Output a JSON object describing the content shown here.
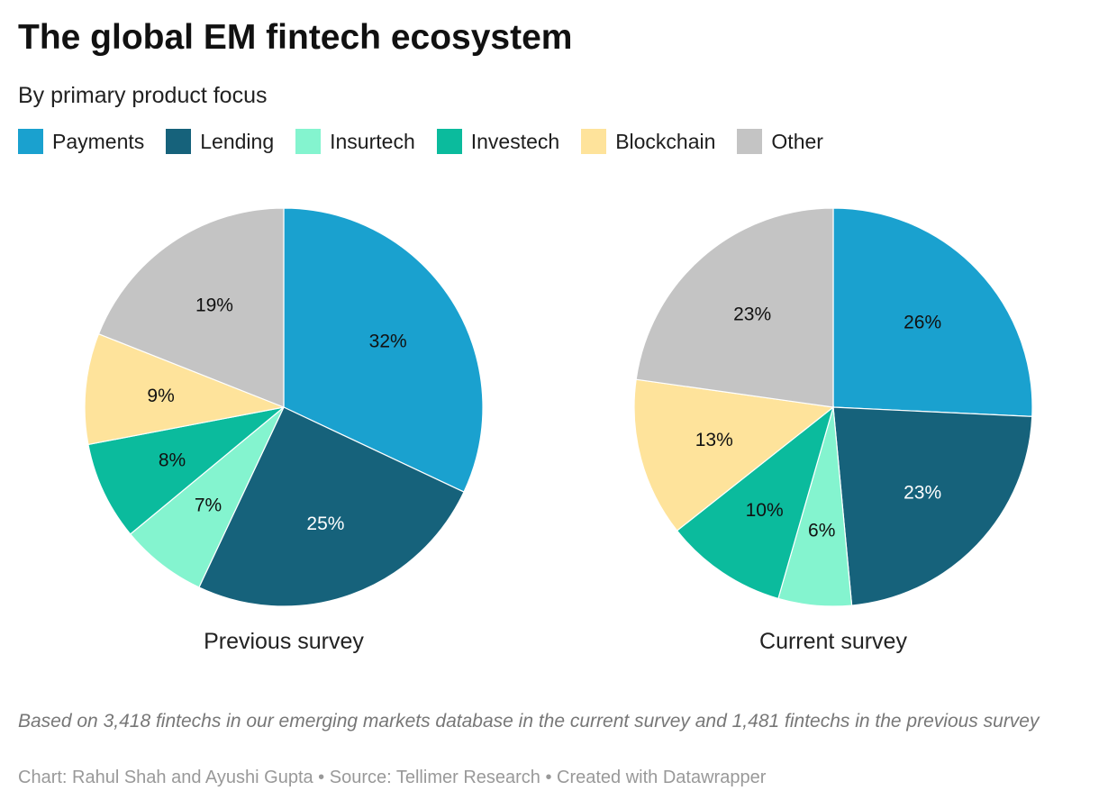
{
  "title": "The global EM fintech ecosystem",
  "subtitle": "By primary product focus",
  "chart_data": [
    {
      "type": "pie",
      "title": "Previous survey",
      "categories": [
        "Payments",
        "Lending",
        "Insurtech",
        "Investech",
        "Blockchain",
        "Other"
      ],
      "values": [
        32,
        25,
        7,
        8,
        9,
        19
      ],
      "labels": [
        "32%",
        "25%",
        "7%",
        "8%",
        "9%",
        "19%"
      ]
    },
    {
      "type": "pie",
      "title": "Current survey",
      "categories": [
        "Payments",
        "Lending",
        "Insurtech",
        "Investech",
        "Blockchain",
        "Other"
      ],
      "values": [
        26,
        23,
        6,
        10,
        13,
        23
      ],
      "labels": [
        "26%",
        "23%",
        "6%",
        "10%",
        "13%",
        "23%"
      ]
    }
  ],
  "legend": [
    {
      "label": "Payments",
      "color": "#1aa1cf"
    },
    {
      "label": "Lending",
      "color": "#16627b"
    },
    {
      "label": "Insurtech",
      "color": "#84f4cf"
    },
    {
      "label": "Investech",
      "color": "#0bbb9d"
    },
    {
      "label": "Blockchain",
      "color": "#fee39b"
    },
    {
      "label": "Other",
      "color": "#c4c4c4"
    }
  ],
  "note": "Based on 3,418 fintechs in our emerging markets database in the current survey and 1,481 fintechs in the previous survey",
  "credit": "Chart: Rahul Shah and Ayushi Gupta • Source: Tellimer Research • Created with Datawrapper"
}
